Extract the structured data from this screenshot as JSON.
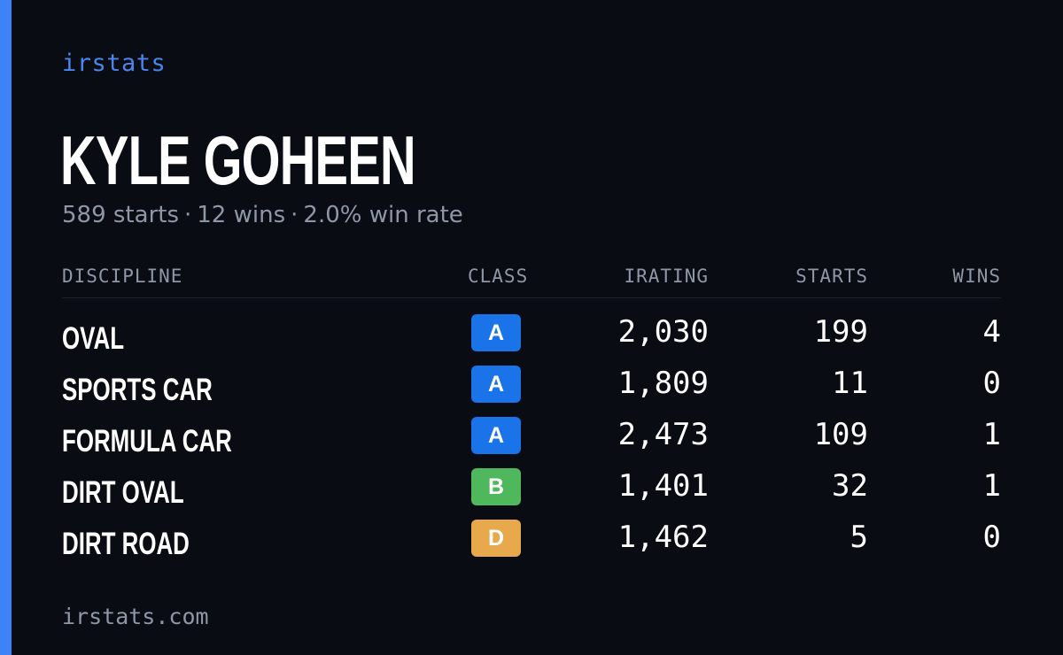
{
  "brand": "irstats",
  "driver": {
    "name": "KYLE GOHEEN",
    "summary_starts": "589 starts",
    "summary_wins": "12 wins",
    "summary_rate": "2.0% win rate",
    "separator": "·"
  },
  "table": {
    "headers": {
      "discipline": "DISCIPLINE",
      "class": "CLASS",
      "irating": "IRATING",
      "starts": "STARTS",
      "wins": "WINS"
    },
    "rows": [
      {
        "discipline": "OVAL",
        "class": "A",
        "class_color": "#1a73e8",
        "irating": "2,030",
        "starts": "199",
        "wins": "4"
      },
      {
        "discipline": "SPORTS CAR",
        "class": "A",
        "class_color": "#1a73e8",
        "irating": "1,809",
        "starts": "11",
        "wins": "0"
      },
      {
        "discipline": "FORMULA CAR",
        "class": "A",
        "class_color": "#1a73e8",
        "irating": "2,473",
        "starts": "109",
        "wins": "1"
      },
      {
        "discipline": "DIRT OVAL",
        "class": "B",
        "class_color": "#4fb85c",
        "irating": "1,401",
        "starts": "32",
        "wins": "1"
      },
      {
        "discipline": "DIRT ROAD",
        "class": "D",
        "class_color": "#e8a94c",
        "irating": "1,462",
        "starts": "5",
        "wins": "0"
      }
    ]
  },
  "footer": {
    "url": "irstats.com"
  },
  "colors": {
    "background": "#0a0c13",
    "accent": "#3d82f6",
    "muted": "#8f97a6"
  }
}
